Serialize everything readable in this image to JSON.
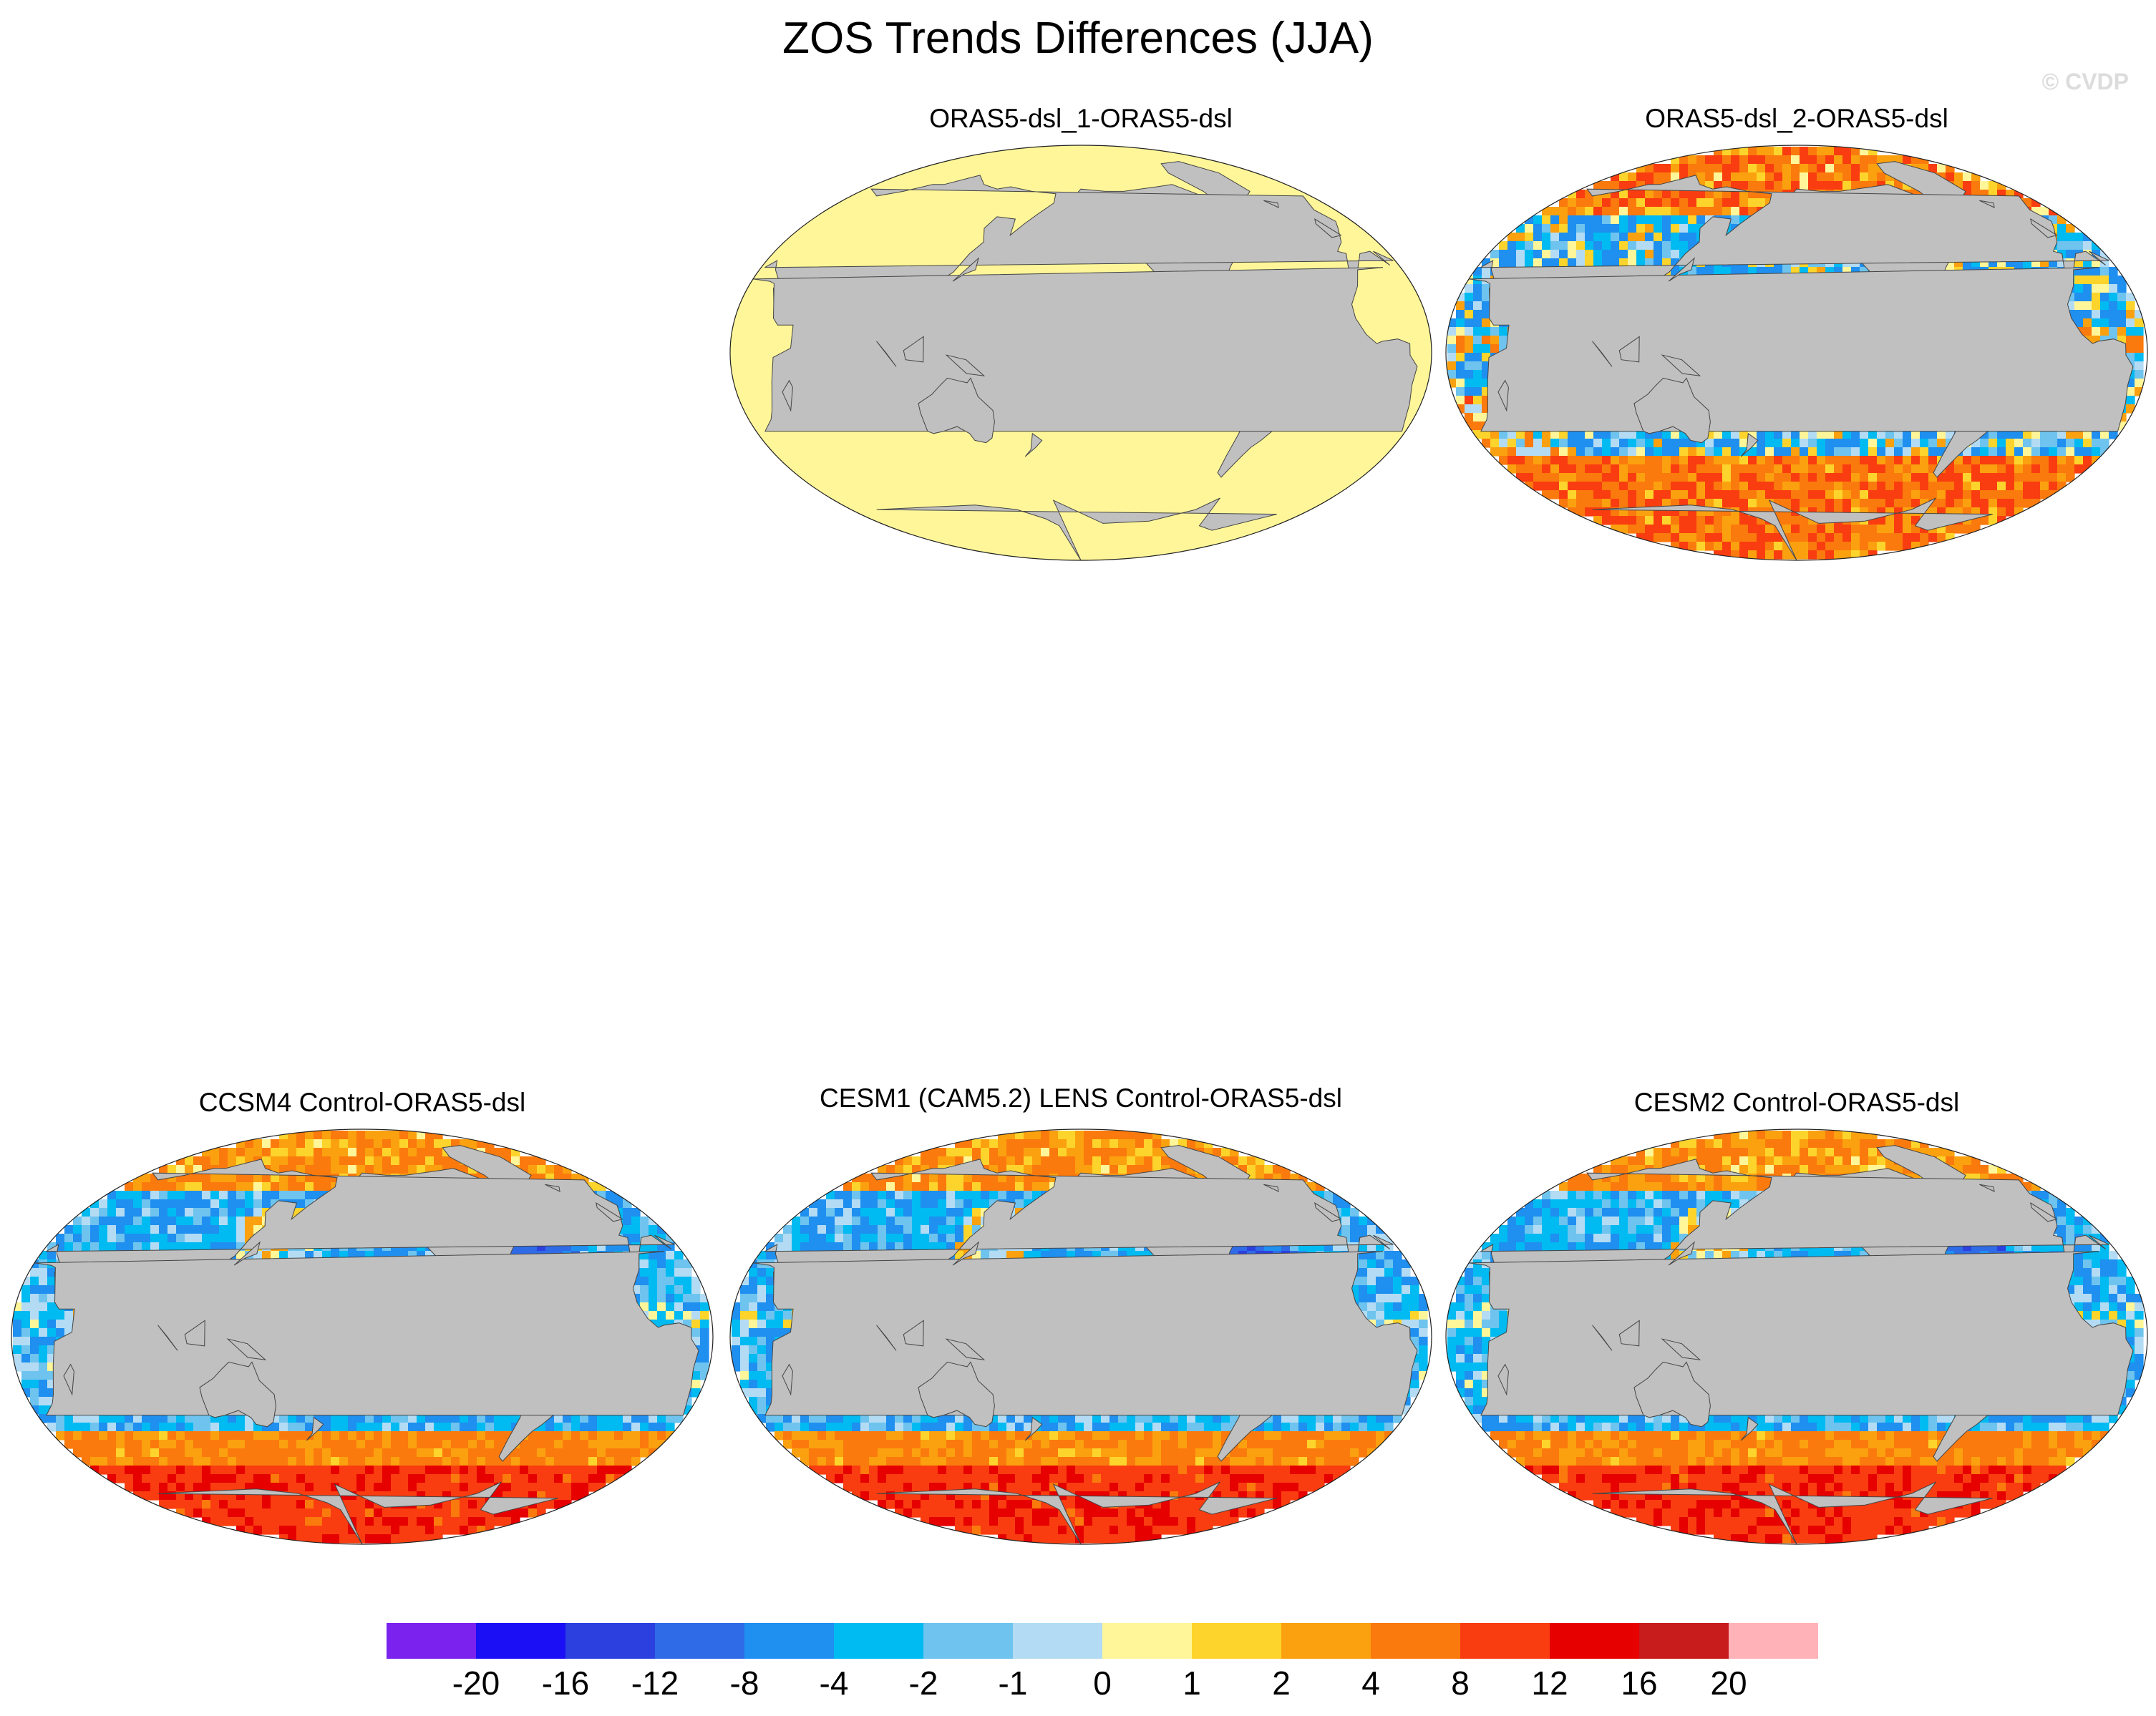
{
  "figure": {
    "title": "ZOS Trends Differences (JJA)",
    "credit": "© CVDP"
  },
  "panels": [
    {
      "title": "ORAS5-dsl_1-ORAS5-dsl",
      "field": "flat"
    },
    {
      "title": "ORAS5-dsl_2-ORAS5-dsl",
      "field": "noisy"
    },
    {
      "title": "CCSM4 Control-ORAS5-dsl",
      "field": "model"
    },
    {
      "title": "CESM1 (CAM5.2) LENS Control-ORAS5-dsl",
      "field": "model"
    },
    {
      "title": "CESM2 Control-ORAS5-dsl",
      "field": "model"
    }
  ],
  "colorbar": {
    "colors": [
      "#7b22ee",
      "#1b10f5",
      "#2c40e0",
      "#2f6be6",
      "#1f8ff0",
      "#00baf2",
      "#6ec4ee",
      "#b3dcf4",
      "#fff699",
      "#fdd42b",
      "#fba10f",
      "#fb7a0d",
      "#f93d10",
      "#e60000",
      "#c81c1c",
      "#ffb3b8"
    ],
    "labels": [
      "-20",
      "-16",
      "-12",
      "-8",
      "-4",
      "-2",
      "-1",
      "0",
      "1",
      "2",
      "4",
      "8",
      "12",
      "16",
      "20"
    ],
    "land_color": "#c0c0c0"
  }
}
